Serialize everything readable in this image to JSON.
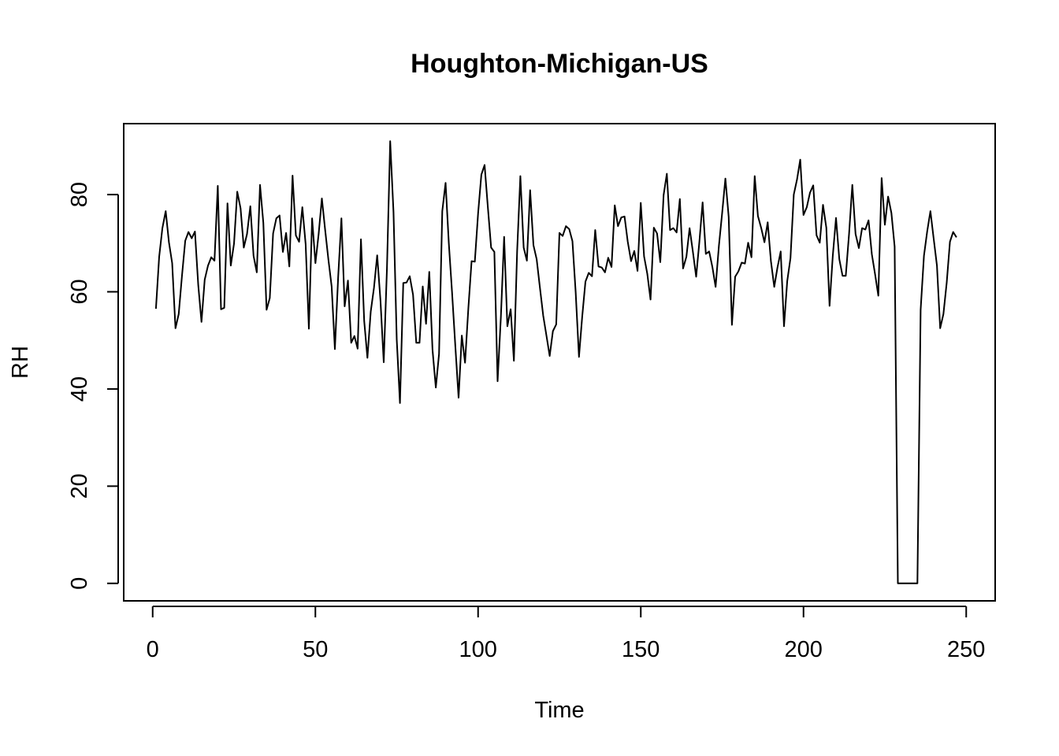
{
  "chart_data": {
    "type": "line",
    "title": "Houghton-Michigan-US",
    "xlabel": "Time",
    "ylabel": "RH",
    "xlim": [
      -8.9,
      258.9
    ],
    "ylim": [
      -3.6,
      94.6
    ],
    "xticks": [
      0,
      50,
      100,
      150,
      200,
      250
    ],
    "yticks": [
      0,
      20,
      40,
      60,
      80
    ],
    "grid": false,
    "legend": "none",
    "line_color": "#000000",
    "series": [
      {
        "x_start": 1,
        "values": [
          56.5,
          67.2,
          73.1,
          76.6,
          70.2,
          65.9,
          52.5,
          55.4,
          63.2,
          70.5,
          72.3,
          71.0,
          72.4,
          61.4,
          53.8,
          62.5,
          65.4,
          67.1,
          66.4,
          81.8,
          56.4,
          56.7,
          78.2,
          65.4,
          69.9,
          80.6,
          77.2,
          69.1,
          71.9,
          77.6,
          67.4,
          64.0,
          82.0,
          74.2,
          56.3,
          58.7,
          72.0,
          75.1,
          75.7,
          68.2,
          72.1,
          65.2,
          83.9,
          71.6,
          70.3,
          77.4,
          69.8,
          52.4,
          75.1,
          65.9,
          71.9,
          79.2,
          72.8,
          66.6,
          61.1,
          48.2,
          63.1,
          75.1,
          57.0,
          62.3,
          49.5,
          50.9,
          48.3,
          70.8,
          54.0,
          46.4,
          55.9,
          60.8,
          67.5,
          58.1,
          45.5,
          64.8,
          91.0,
          76.4,
          50.2,
          37.1,
          61.8,
          61.9,
          63.2,
          59.4,
          49.5,
          49.5,
          61.1,
          53.4,
          64.1,
          48.1,
          40.3,
          47.2,
          76.6,
          82.4,
          70.0,
          59.9,
          49.0,
          38.2,
          51.0,
          45.4,
          56.6,
          66.3,
          66.2,
          76.2,
          84.1,
          86.1,
          77.5,
          69.1,
          68.2,
          41.6,
          54.9,
          71.3,
          52.9,
          56.4,
          45.8,
          68.3,
          83.8,
          69.1,
          66.4,
          80.9,
          69.6,
          66.7,
          60.9,
          55.1,
          51.0,
          46.8,
          51.9,
          53.3,
          72.1,
          71.5,
          73.5,
          72.9,
          70.4,
          59.9,
          46.6,
          54.9,
          62.1,
          63.9,
          63.2,
          72.7,
          65.2,
          65.0,
          64.0,
          67.0,
          65.1,
          77.8,
          73.5,
          75.3,
          75.5,
          70.3,
          66.3,
          68.4,
          64.3,
          78.3,
          67.3,
          63.7,
          58.4,
          73.2,
          72.0,
          66.1,
          79.9,
          84.3,
          72.7,
          73.1,
          72.2,
          79.1,
          64.8,
          67.2,
          73.1,
          68.3,
          63.1,
          70.3,
          78.4,
          67.8,
          68.3,
          65.1,
          61.0,
          69.5,
          76.2,
          83.3,
          75.4,
          53.2,
          63.1,
          64.2,
          66.0,
          65.8,
          70.1,
          67.1,
          83.8,
          75.6,
          73.1,
          70.2,
          74.3,
          66.3,
          61.0,
          65.0,
          68.3,
          52.9,
          62.2,
          66.9,
          80.0,
          83.1,
          87.2,
          75.8,
          77.4,
          80.4,
          81.9,
          71.6,
          70.1,
          77.9,
          73.2,
          57.1,
          67.4,
          75.2,
          66.7,
          63.3,
          63.3,
          72.0,
          82.0,
          71.9,
          69.0,
          73.1,
          72.8,
          74.7,
          67.7,
          63.6,
          59.2,
          83.4,
          73.8,
          79.6,
          76.2,
          69.3,
          0.0,
          0.0,
          0.0,
          0.0,
          0.0,
          0.0,
          0.0,
          56.3,
          67.4,
          72.4,
          76.6,
          71.0,
          65.4,
          52.5,
          55.4,
          61.9,
          70.3,
          72.3,
          71.2
        ]
      }
    ]
  }
}
